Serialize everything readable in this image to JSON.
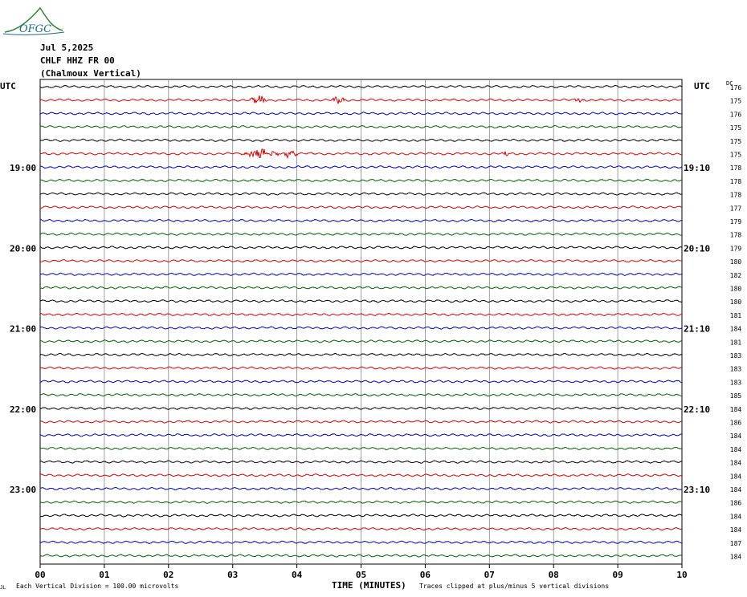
{
  "logo": {
    "text": "OFGC"
  },
  "header": {
    "date": "Jul 5,2025",
    "station": "CHLF HHZ FR 00",
    "channel": "(Chalmoux Vertical)"
  },
  "colors": {
    "traces": [
      "#000000",
      "#e00000",
      "#0000cc",
      "#006400"
    ],
    "grid": "#888888",
    "logo": "#1a6b8a",
    "logo_hill": "#2e8b2e"
  },
  "chart_data": {
    "type": "line",
    "title": "",
    "xlabel": "TIME (MINUTES)",
    "ylabel": "",
    "xlim": [
      0,
      10
    ],
    "x_ticks": [
      "00",
      "01",
      "02",
      "03",
      "04",
      "05",
      "06",
      "07",
      "08",
      "09",
      "10"
    ],
    "left_axis_label": "UTC",
    "right_axis_label": "UTC",
    "dc_label": "DC",
    "left_time_labels": [
      {
        "row": 6,
        "text": "19:00"
      },
      {
        "row": 12,
        "text": "20:00"
      },
      {
        "row": 18,
        "text": "21:00"
      },
      {
        "row": 24,
        "text": "22:00"
      },
      {
        "row": 30,
        "text": "23:00"
      }
    ],
    "right_time_labels": [
      {
        "row": 6,
        "text": "19:10"
      },
      {
        "row": 12,
        "text": "20:10"
      },
      {
        "row": 18,
        "text": "21:10"
      },
      {
        "row": 24,
        "text": "22:10"
      },
      {
        "row": 30,
        "text": "23:10"
      }
    ],
    "dc_values": [
      "176",
      "175",
      "176",
      "175",
      "175",
      "175",
      "178",
      "178",
      "178",
      "177",
      "179",
      "178",
      "179",
      "180",
      "182",
      "180",
      "180",
      "181",
      "184",
      "181",
      "183",
      "183",
      "183",
      "185",
      "184",
      "186",
      "184",
      "184",
      "184",
      "184",
      "184",
      "186",
      "184",
      "184",
      "187",
      "184"
    ],
    "events": [
      {
        "row": 1,
        "minute": 3.4,
        "amplitude": 7,
        "duration": 0.15
      },
      {
        "row": 1,
        "minute": 4.65,
        "amplitude": 5,
        "duration": 0.12
      },
      {
        "row": 1,
        "minute": 8.4,
        "amplitude": 3,
        "duration": 0.1
      },
      {
        "row": 5,
        "minute": 3.45,
        "amplitude": 6,
        "duration": 0.35
      },
      {
        "row": 5,
        "minute": 3.9,
        "amplitude": 7,
        "duration": 0.12
      },
      {
        "row": 5,
        "minute": 7.25,
        "amplitude": 3,
        "duration": 0.08
      }
    ],
    "footer_scale": "Each Vertical Division =  100.00 microvolts",
    "footer_clip": "Traces clipped at plus/minus 5 vertical divisions",
    "footer_mark": "JL"
  }
}
